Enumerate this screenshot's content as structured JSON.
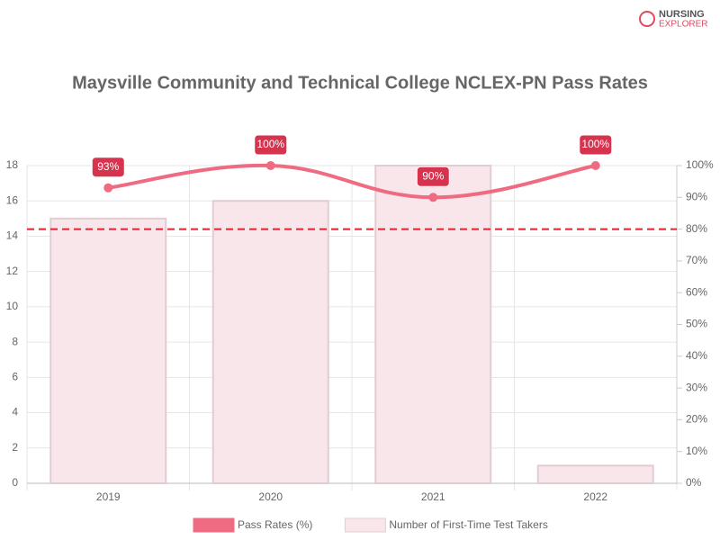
{
  "logo": {
    "line1": "NURSING",
    "line2": "EXPLORER"
  },
  "chart_data": {
    "type": "bar-line",
    "title": "Maysville Community and Technical College NCLEX-PN Pass Rates",
    "categories": [
      "2019",
      "2020",
      "2021",
      "2022"
    ],
    "series": [
      {
        "name": "Pass Rates (%)",
        "type": "line",
        "axis": "y2",
        "color": "#ee6b82",
        "values": [
          93,
          100,
          90,
          100
        ],
        "value_labels": [
          "93%",
          "100%",
          "90%",
          "100%"
        ]
      },
      {
        "name": "Number of First-Time Test Takers",
        "type": "bar",
        "color": "#f9e6ea",
        "border": "#e0cdd2",
        "values": [
          15,
          16,
          18,
          1
        ]
      }
    ],
    "ylim": [
      0,
      18
    ],
    "yticks": [
      0,
      2,
      4,
      6,
      8,
      10,
      12,
      14,
      16,
      18
    ],
    "y2lim": [
      0,
      100
    ],
    "y2ticks": [
      {
        "value": 0,
        "label": "0%"
      },
      {
        "value": 10,
        "label": "10%"
      },
      {
        "value": 20,
        "label": "20%"
      },
      {
        "value": 30,
        "label": "30%"
      },
      {
        "value": 40,
        "label": "40%"
      },
      {
        "value": 50,
        "label": "50%"
      },
      {
        "value": 60,
        "label": "60%"
      },
      {
        "value": 70,
        "label": "70%"
      },
      {
        "value": 80,
        "label": "80%"
      },
      {
        "value": 90,
        "label": "90%"
      },
      {
        "value": 100,
        "label": "100%"
      }
    ],
    "reference_line": {
      "value": 80,
      "axis": "y2",
      "color": "#dd2233"
    },
    "grid": true
  }
}
